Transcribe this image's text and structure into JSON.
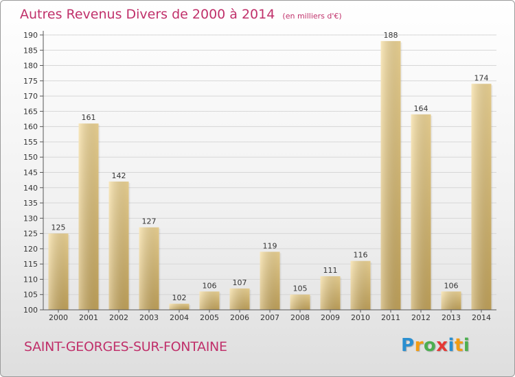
{
  "title": "Autres Revenus Divers de 2000 à 2014",
  "subtitle": "(en milliers d'€)",
  "commune": "SAINT-GEORGES-SUR-FONTAINE",
  "logo": {
    "letters": [
      {
        "ch": "P",
        "color": "#2a8fd0"
      },
      {
        "ch": "r",
        "color": "#f39c12"
      },
      {
        "ch": "o",
        "color": "#4caf50"
      },
      {
        "ch": "x",
        "color": "#e53935"
      },
      {
        "ch": "i",
        "color": "#2a8fd0"
      },
      {
        "ch": "t",
        "color": "#f39c12"
      },
      {
        "ch": "i",
        "color": "#4caf50"
      }
    ]
  },
  "colors": {
    "title": "#c0306a",
    "bar_light": "#f6dc9a",
    "bar_dark": "#c9a95e"
  },
  "chart_data": {
    "type": "bar",
    "title": "Autres Revenus Divers de 2000 à 2014",
    "subtitle": "(en milliers d'€)",
    "xlabel": "",
    "ylabel": "",
    "categories": [
      "2000",
      "2001",
      "2002",
      "2003",
      "2004",
      "2005",
      "2006",
      "2007",
      "2008",
      "2009",
      "2010",
      "2011",
      "2012",
      "2013",
      "2014"
    ],
    "values": [
      125,
      161,
      142,
      127,
      102,
      106,
      107,
      119,
      105,
      111,
      116,
      188,
      164,
      106,
      174
    ],
    "ylim": [
      100,
      190
    ],
    "yticks": [
      100,
      105,
      110,
      115,
      120,
      125,
      130,
      135,
      140,
      145,
      150,
      155,
      160,
      165,
      170,
      175,
      180,
      185,
      190
    ],
    "grid": true
  }
}
